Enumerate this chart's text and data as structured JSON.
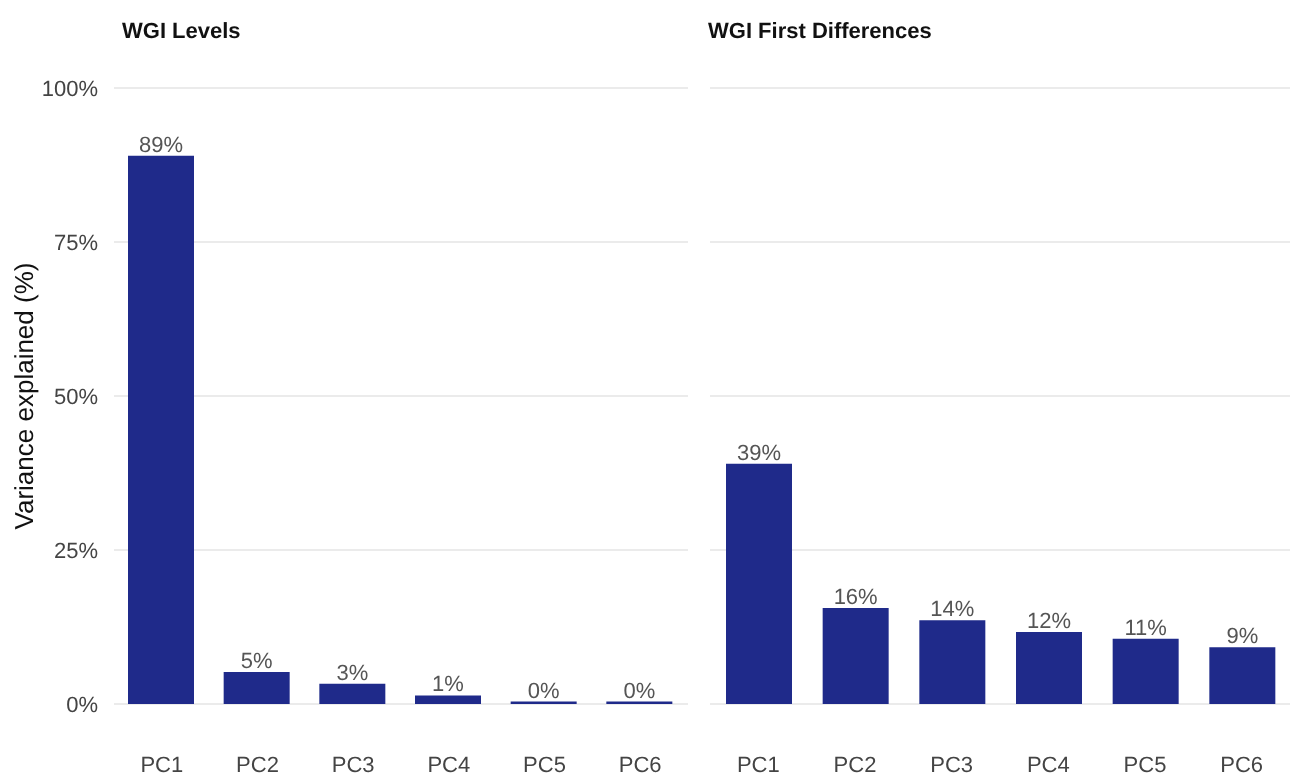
{
  "chart_data": [
    {
      "type": "bar",
      "title": "WGI Levels",
      "ylabel": "Variance explained (%)",
      "categories": [
        "PC1",
        "PC2",
        "PC3",
        "PC4",
        "PC5",
        "PC6"
      ],
      "values": [
        89,
        5.2,
        3.3,
        1.4,
        0.4,
        0.4
      ],
      "color": "#1f2a8a",
      "value_labels": [
        "89%",
        "5%",
        "3%",
        "1%",
        "0%",
        "0%"
      ],
      "ylim": [
        0,
        100
      ],
      "yticks": [
        {
          "value": 0,
          "label": "0%"
        },
        {
          "value": 25,
          "label": "25%"
        },
        {
          "value": 50,
          "label": "50%"
        },
        {
          "value": 75,
          "label": "75%"
        },
        {
          "value": 100,
          "label": "100%"
        }
      ],
      "grid": "y",
      "legend": false
    },
    {
      "type": "bar",
      "title": "WGI First Differences",
      "categories": [
        "PC1",
        "PC2",
        "PC3",
        "PC4",
        "PC5",
        "PC6"
      ],
      "values": [
        39,
        15.6,
        13.6,
        11.7,
        10.6,
        9.2
      ],
      "color": "#1f2a8a",
      "value_labels": [
        "39%",
        "16%",
        "14%",
        "12%",
        "11%",
        "9%"
      ],
      "ylim": [
        0,
        100
      ],
      "yticks": [
        0,
        25,
        50,
        75,
        100
      ],
      "grid": "y",
      "legend": false,
      "tick_labels": "x"
    }
  ]
}
